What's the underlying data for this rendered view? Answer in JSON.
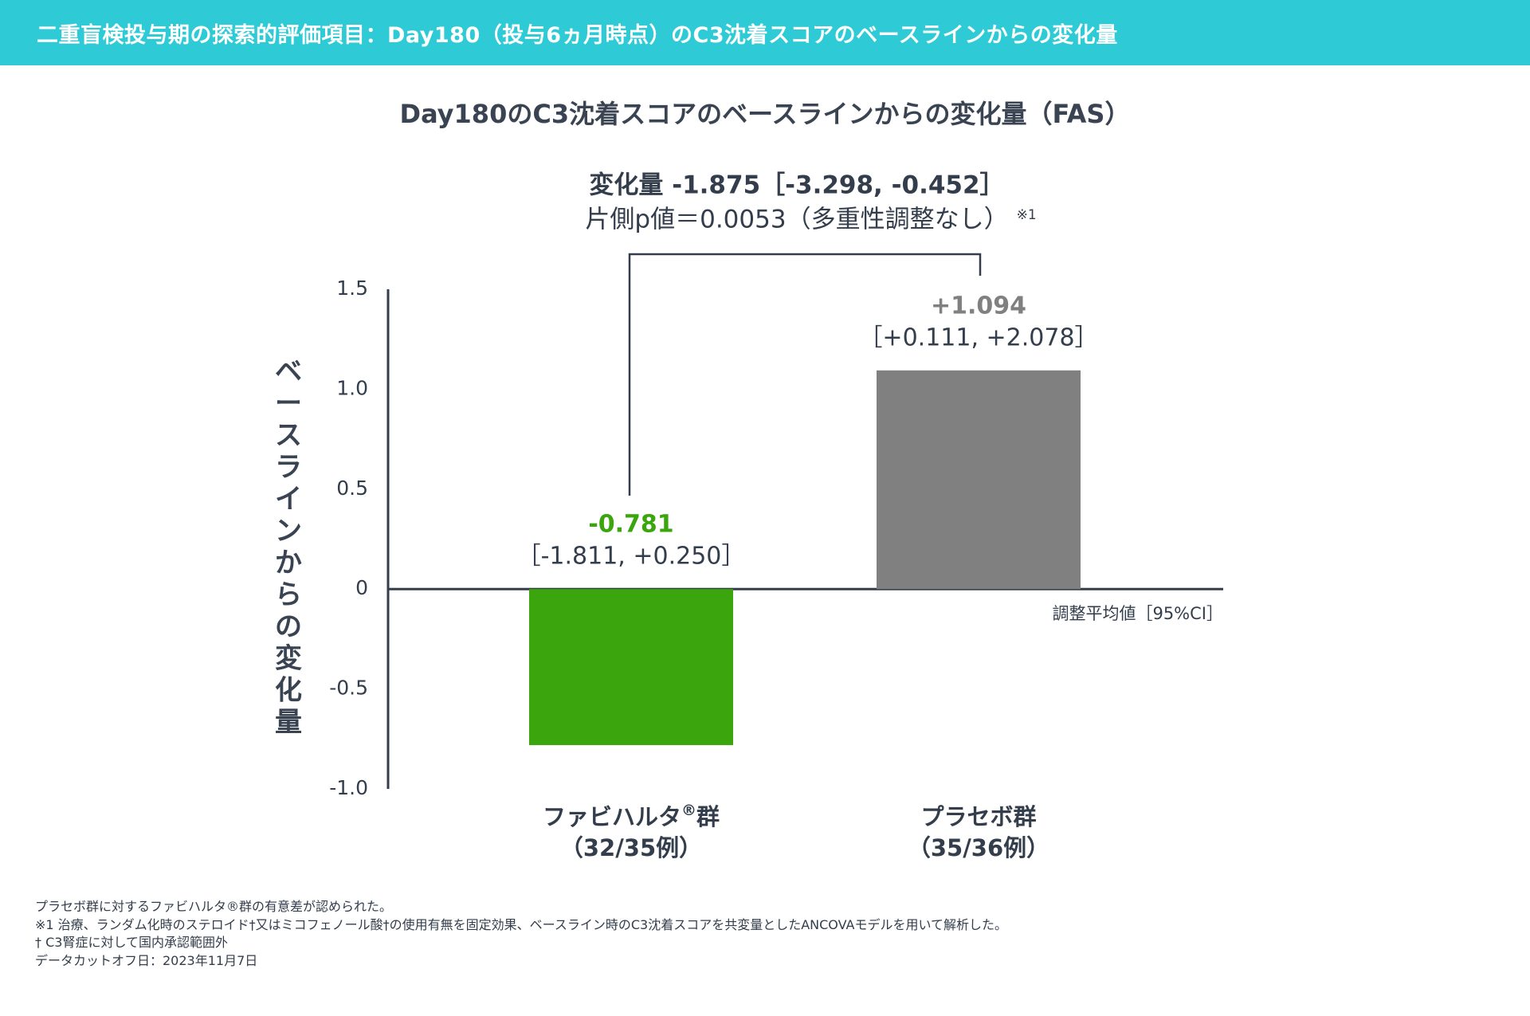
{
  "header": {
    "title": "二重盲検投与期の探索的評価項目：Day180（投与6ヵ月時点）のC3沈着スコアのベースラインからの変化量"
  },
  "colors": {
    "header_bg": "#2ecbd6",
    "fabhalta": "#3aa50c",
    "placebo": "#808080",
    "axis": "#333d4b",
    "text": "#333d4b"
  },
  "chart_data": {
    "type": "bar",
    "title": "Day180のC3沈着スコアのベースラインからの変化量（FAS）",
    "ylabel": "ベースラインからの変化量",
    "ylim": [
      -1.0,
      1.5
    ],
    "yticks": [
      {
        "value": 1.5,
        "label": "1.5"
      },
      {
        "value": 1.0,
        "label": "1.0"
      },
      {
        "value": 0.5,
        "label": "0.5"
      },
      {
        "value": 0,
        "label": "0"
      },
      {
        "value": -0.5,
        "label": "-0.5"
      },
      {
        "value": -1.0,
        "label": "-1.0"
      }
    ],
    "value_note": "調整平均値［95%CI］",
    "grid": false,
    "categories": [
      {
        "name": "ファビハルタ",
        "name_sup": "®",
        "name_suffix": "群",
        "n_label": "（32/35例）"
      },
      {
        "name": "プラセボ群",
        "name_sup": "",
        "name_suffix": "",
        "n_label": "（35/36例）"
      }
    ],
    "values": [
      -0.781,
      1.094
    ],
    "ci": [
      [
        -1.811,
        0.25
      ],
      [
        0.111,
        2.078
      ]
    ],
    "value_labels": [
      "-0.781",
      "+1.094"
    ],
    "ci_labels": [
      "［-1.811, +0.250］",
      "［+0.111, +2.078］"
    ],
    "bar_colors": [
      "#3aa50c",
      "#808080"
    ],
    "comparison": {
      "line1": "変化量 -1.875［-3.298, -0.452］",
      "line2": "片側p値＝0.0053（多重性調整なし）",
      "note_mark": "※1"
    }
  },
  "footnotes": [
    "プラセボ群に対するファビハルタ®群の有意差が認められた。",
    "※1 治療、ランダム化時のステロイド†又はミコフェノール酸†の使用有無を固定効果、ベースライン時のC3沈着スコアを共変量としたANCOVAモデルを用いて解析した。",
    "† C3腎症に対して国内承認範囲外",
    "データカットオフ日：2023年11月7日"
  ]
}
